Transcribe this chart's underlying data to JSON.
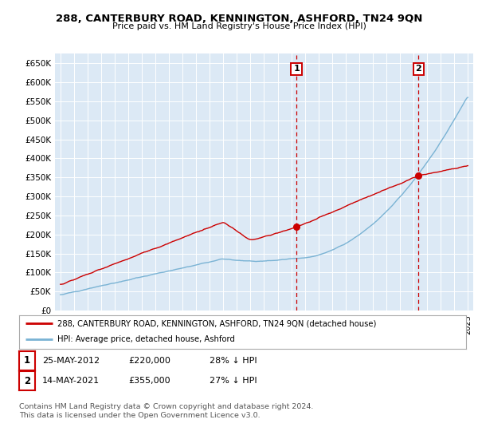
{
  "title": "288, CANTERBURY ROAD, KENNINGTON, ASHFORD, TN24 9QN",
  "subtitle": "Price paid vs. HM Land Registry's House Price Index (HPI)",
  "ylim": [
    0,
    675000
  ],
  "yticks": [
    0,
    50000,
    100000,
    150000,
    200000,
    250000,
    300000,
    350000,
    400000,
    450000,
    500000,
    550000,
    600000,
    650000
  ],
  "ytick_labels": [
    "£0",
    "£50K",
    "£100K",
    "£150K",
    "£200K",
    "£250K",
    "£300K",
    "£350K",
    "£400K",
    "£450K",
    "£500K",
    "£550K",
    "£600K",
    "£650K"
  ],
  "hpi_color": "#7ab3d4",
  "price_color": "#cc0000",
  "background_color": "#dce9f5",
  "fig_bg": "#ffffff",
  "sale1_date": 2012.38,
  "sale1_price": 220000,
  "sale2_date": 2021.37,
  "sale2_price": 355000,
  "legend_line1": "288, CANTERBURY ROAD, KENNINGTON, ASHFORD, TN24 9QN (detached house)",
  "legend_line2": "HPI: Average price, detached house, Ashford",
  "note1_num": "1",
  "note1_date": "25-MAY-2012",
  "note1_price": "£220,000",
  "note1_hpi": "28% ↓ HPI",
  "note2_num": "2",
  "note2_date": "14-MAY-2021",
  "note2_price": "£355,000",
  "note2_hpi": "27% ↓ HPI",
  "copyright": "Contains HM Land Registry data © Crown copyright and database right 2024.\nThis data is licensed under the Open Government Licence v3.0.",
  "title_fontsize": 9.5,
  "subtitle_fontsize": 8.0
}
